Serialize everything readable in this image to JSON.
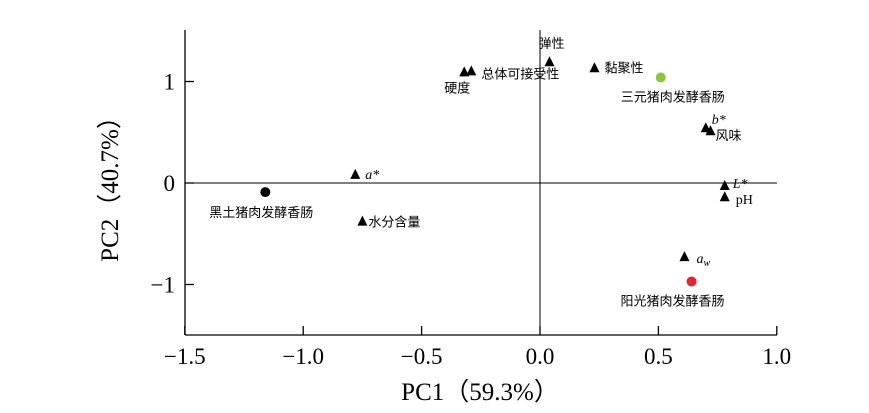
{
  "chart_data": {
    "type": "scatter",
    "title": "",
    "xlabel": "PC1（59.3%）",
    "ylabel": "PC2（40.7%）",
    "xlim": [
      -1.5,
      1.0
    ],
    "ylim": [
      -1.5,
      1.5
    ],
    "x_ticks": [
      "−1.5",
      "−1.0",
      "−0.5",
      "0.0",
      "0.5",
      "1.0"
    ],
    "x_tick_values": [
      -1.5,
      -1.0,
      -0.5,
      0.0,
      0.5,
      1.0
    ],
    "y_ticks": [
      "1",
      "0",
      "−1"
    ],
    "y_tick_values": [
      1,
      0,
      -1
    ],
    "grid": false,
    "series": [
      {
        "name": "",
        "marker": "triangle",
        "color": "#000000",
        "points": [
          {
            "label": "弹性",
            "x": 0.04,
            "y": 1.19
          },
          {
            "label": "总体可接受性",
            "x": -0.29,
            "y": 1.1
          },
          {
            "label": "硬度",
            "x": -0.32,
            "y": 1.09
          },
          {
            "label": "黏聚性",
            "x": 0.23,
            "y": 1.13
          },
          {
            "label": "b*",
            "x": 0.7,
            "y": 0.54
          },
          {
            "label": "风味",
            "x": 0.72,
            "y": 0.51
          },
          {
            "label": "a*",
            "x": -0.78,
            "y": 0.08
          },
          {
            "label": "L*",
            "x": 0.78,
            "y": -0.03
          },
          {
            "label": "pH",
            "x": 0.78,
            "y": -0.14
          },
          {
            "label": "水分含量",
            "x": -0.75,
            "y": -0.38
          },
          {
            "label": "aw",
            "x": 0.61,
            "y": -0.73
          }
        ]
      },
      {
        "name": "",
        "marker": "circle",
        "points": [
          {
            "label": "三元猪肉发酵香肠",
            "x": 0.51,
            "y": 1.04,
            "color": "#8dc63f"
          },
          {
            "label": "黑土猪肉发酵香肠",
            "x": -1.16,
            "y": -0.09,
            "color": "#000000"
          },
          {
            "label": "阳光猪肉发酵香肠",
            "x": 0.64,
            "y": -0.97,
            "color": "#e3262d"
          }
        ]
      }
    ]
  }
}
